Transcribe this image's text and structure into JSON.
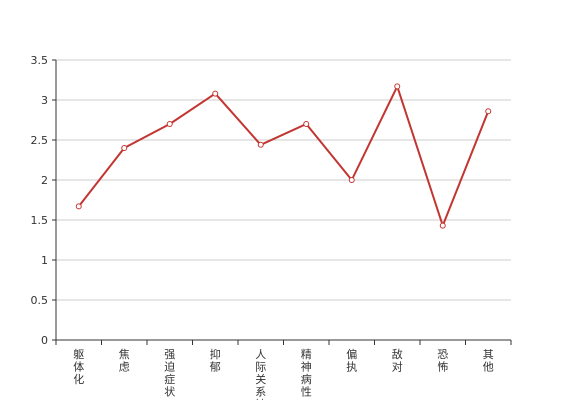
{
  "chart_data": {
    "type": "line",
    "categories": [
      "躯体化",
      "焦虑",
      "强迫症状",
      "抑郁",
      "人际关系敏感",
      "精神病性",
      "偏执",
      "敌对",
      "恐怖",
      "其他"
    ],
    "series": [
      {
        "values": [
          1.67,
          2.4,
          2.7,
          3.08,
          2.44,
          2.7,
          2.0,
          3.17,
          1.43,
          2.86
        ]
      }
    ],
    "ylim": [
      0,
      3.5
    ],
    "yticks": [
      "0",
      "0.5",
      "1",
      "1.5",
      "2",
      "2.5",
      "3",
      "3.5"
    ],
    "grid": true,
    "title": "",
    "xlabel": "",
    "ylabel": "",
    "colors": {
      "line": "#c23531",
      "point_fill": "#ffffff",
      "grid": "#cccccc",
      "axis": "#333333"
    }
  }
}
